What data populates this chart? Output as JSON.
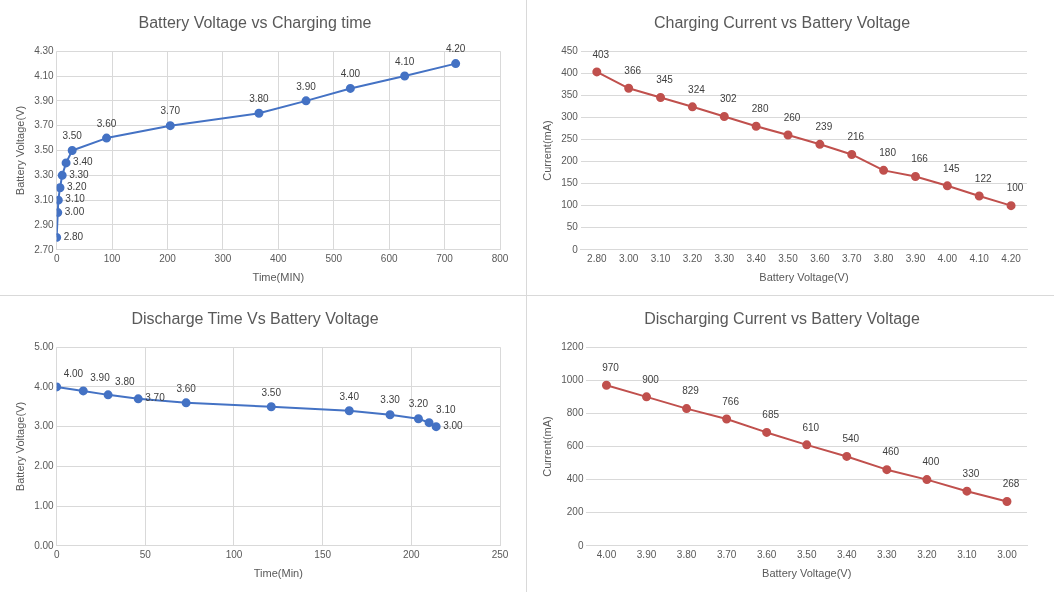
{
  "chart_data": [
    {
      "type": "line",
      "title": "Battery Voltage vs Charging time",
      "xlabel": "Time(MIN)",
      "ylabel": "Battery Voltage(V)",
      "x": [
        0,
        2,
        3,
        6,
        10,
        17,
        28,
        90,
        205,
        365,
        450,
        530,
        628,
        720
      ],
      "series": [
        {
          "color": "#4472c4",
          "values": [
            2.8,
            3.0,
            3.1,
            3.2,
            3.3,
            3.4,
            3.5,
            3.6,
            3.7,
            3.8,
            3.9,
            4.0,
            4.1,
            4.2
          ],
          "value_labels": [
            "2.80",
            "3.00",
            "3.10",
            "3.20",
            "3.30",
            "3.40",
            "3.50",
            "3.60",
            "3.70",
            "3.80",
            "3.90",
            "4.00",
            "4.10",
            "4.20"
          ]
        }
      ],
      "xlim": [
        0,
        800
      ],
      "xticks": [
        0,
        100,
        200,
        300,
        400,
        500,
        600,
        700,
        800
      ],
      "ylim": [
        2.7,
        4.3
      ],
      "yticks": [
        {
          "value": 2.7,
          "label": "2.70"
        },
        {
          "value": 2.9,
          "label": "2.90"
        },
        {
          "value": 3.1,
          "label": "3.10"
        },
        {
          "value": 3.3,
          "label": "3.30"
        },
        {
          "value": 3.5,
          "label": "3.50"
        },
        {
          "value": 3.7,
          "label": "3.70"
        },
        {
          "value": 3.9,
          "label": "3.90"
        },
        {
          "value": 4.1,
          "label": "4.10"
        },
        {
          "value": 4.3,
          "label": "4.30"
        }
      ],
      "grid": true,
      "marker": "circle"
    },
    {
      "type": "line",
      "title": "Charging Current vs Battery Voltage",
      "xlabel": "Battery Voltage(V)",
      "ylabel": "Current(mA)",
      "categories": [
        "2.80",
        "3.00",
        "3.10",
        "3.20",
        "3.30",
        "3.40",
        "3.50",
        "3.60",
        "3.70",
        "3.80",
        "3.90",
        "4.00",
        "4.10",
        "4.20"
      ],
      "series": [
        {
          "color": "#c0504d",
          "values": [
            403,
            366,
            345,
            324,
            302,
            280,
            260,
            239,
            216,
            180,
            166,
            145,
            122,
            100
          ]
        }
      ],
      "ylim": [
        0,
        450
      ],
      "yticks": [
        0,
        50,
        100,
        150,
        200,
        250,
        300,
        350,
        400,
        450
      ],
      "grid": "y",
      "marker": "circle",
      "data_labels": true
    },
    {
      "type": "line",
      "title": "Discharge Time Vs Battery Voltage",
      "xlabel": "Time(Min)",
      "ylabel": "Battery Voltage(V)",
      "x": [
        0,
        15,
        29,
        46,
        73,
        121,
        165,
        188,
        204,
        210,
        214
      ],
      "series": [
        {
          "color": "#4472c4",
          "values": [
            4.0,
            3.9,
            3.8,
            3.7,
            3.6,
            3.5,
            3.4,
            3.3,
            3.2,
            3.1,
            3.0
          ],
          "value_labels": [
            "4.00",
            "3.90",
            "3.80",
            "3.70",
            "3.60",
            "3.50",
            "3.40",
            "3.30",
            "3.20",
            "3.10",
            "3.00"
          ]
        }
      ],
      "xlim": [
        0,
        250
      ],
      "xticks": [
        0,
        50,
        100,
        150,
        200,
        250
      ],
      "ylim": [
        0,
        5
      ],
      "yticks": [
        {
          "value": 0,
          "label": "0.00"
        },
        {
          "value": 1,
          "label": "1.00"
        },
        {
          "value": 2,
          "label": "2.00"
        },
        {
          "value": 3,
          "label": "3.00"
        },
        {
          "value": 4,
          "label": "4.00"
        },
        {
          "value": 5,
          "label": "5.00"
        }
      ],
      "grid": true,
      "marker": "circle"
    },
    {
      "type": "line",
      "title": "Discharging Current vs Battery Voltage",
      "xlabel": "Battery Voltage(V)",
      "ylabel": "Current(mA)",
      "categories": [
        "4.00",
        "3.90",
        "3.80",
        "3.70",
        "3.60",
        "3.50",
        "3.40",
        "3.30",
        "3.20",
        "3.10",
        "3.00"
      ],
      "series": [
        {
          "color": "#c0504d",
          "values": [
            970,
            900,
            829,
            766,
            685,
            610,
            540,
            460,
            400,
            330,
            268
          ]
        }
      ],
      "ylim": [
        0,
        1200
      ],
      "yticks": [
        0,
        200,
        400,
        600,
        800,
        1000,
        1200
      ],
      "grid": "y",
      "marker": "circle",
      "data_labels": true
    }
  ]
}
